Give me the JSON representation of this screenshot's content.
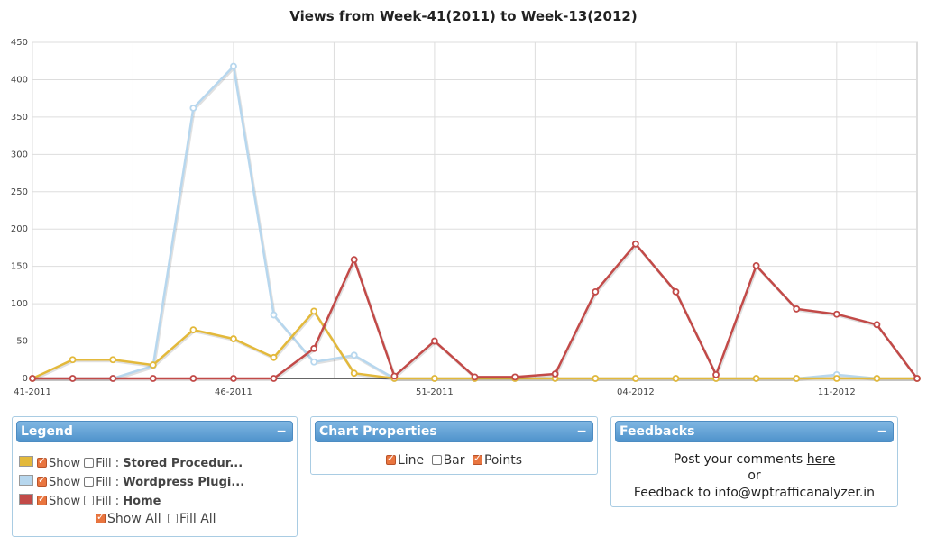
{
  "chart_data": {
    "type": "line",
    "title": "Views from Week-41(2011) to Week-13(2012)",
    "xlabel": "",
    "ylabel": "",
    "ylim": [
      0,
      450
    ],
    "yticks": [
      0,
      50,
      100,
      150,
      200,
      250,
      300,
      350,
      400,
      450
    ],
    "x_tick_labels": [
      "41-2011",
      "46-2011",
      "51-2011",
      "04-2012",
      "11-2012"
    ],
    "x_tick_indices": [
      0,
      5,
      10,
      15,
      20
    ],
    "grid": true,
    "points": true,
    "series": [
      {
        "name": "Stored Procedur...",
        "color": "#e3b93b",
        "values": [
          0,
          25,
          25,
          18,
          65,
          53,
          28,
          90,
          7,
          0,
          0,
          0,
          0,
          0,
          0,
          0,
          0,
          0,
          0,
          0,
          0,
          0,
          0
        ]
      },
      {
        "name": "Wordpress Plugi...",
        "color": "#b7d7ee",
        "values": [
          0,
          0,
          0,
          17,
          362,
          418,
          85,
          22,
          31,
          0,
          0,
          0,
          0,
          0,
          0,
          0,
          0,
          0,
          0,
          0,
          5,
          0,
          0
        ]
      },
      {
        "name": "Home",
        "color": "#c24a48",
        "values": [
          0,
          0,
          0,
          0,
          0,
          0,
          0,
          40,
          159,
          3,
          50,
          2,
          2,
          6,
          116,
          180,
          116,
          5,
          151,
          93,
          86,
          72,
          0
        ]
      }
    ]
  },
  "legend": {
    "title": "Legend",
    "collapse": "−",
    "show_label": "Show",
    "fill_label": "Fill",
    "separator": ":",
    "rows": [
      {
        "name": "Stored Procedur...",
        "color": "#e3b93b"
      },
      {
        "name": "Wordpress Plugi...",
        "color": "#b7d7ee"
      },
      {
        "name": "Home",
        "color": "#c24a48"
      }
    ],
    "show_all_label": "Show All",
    "fill_all_label": "Fill All"
  },
  "properties": {
    "title": "Chart Properties",
    "collapse": "−",
    "line_label": "Line",
    "bar_label": "Bar",
    "points_label": "Points"
  },
  "feedbacks": {
    "title": "Feedbacks",
    "collapse": "−",
    "line1_prefix": "Post your comments ",
    "line1_link": "here",
    "line2": "or",
    "line3": "Feedback to info@wptrafficanalyzer.in"
  }
}
